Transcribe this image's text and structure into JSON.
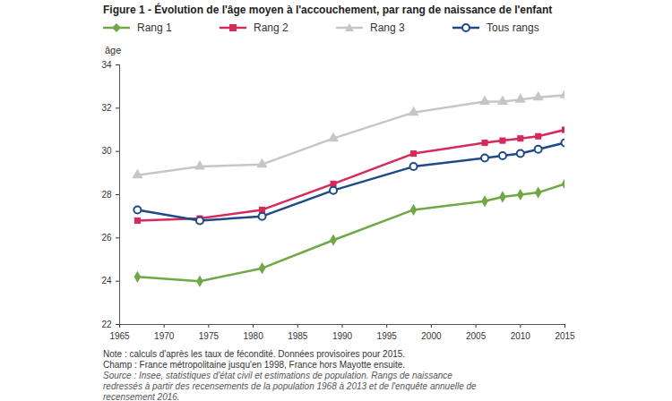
{
  "chart_data": {
    "type": "line",
    "title": "Figure 1 - Évolution de l'âge moyen à l'accouchement, par rang de naissance de l'enfant",
    "y_label": "âge",
    "x": [
      1967,
      1974,
      1981,
      1989,
      1998,
      2006,
      2008,
      2010,
      2012,
      2015
    ],
    "series": [
      {
        "name": "Rang 1",
        "color": "#70a845",
        "marker": "diamond",
        "values": [
          24.2,
          24.0,
          24.6,
          25.9,
          27.3,
          27.7,
          27.9,
          28.0,
          28.1,
          28.5
        ]
      },
      {
        "name": "Rang 2",
        "color": "#d62a5b",
        "marker": "square",
        "values": [
          26.8,
          26.9,
          27.3,
          28.5,
          29.9,
          30.4,
          30.5,
          30.6,
          30.7,
          31.0
        ]
      },
      {
        "name": "Rang 3",
        "color": "#c6c6c6",
        "marker": "triangle",
        "values": [
          28.9,
          29.3,
          29.4,
          30.6,
          31.8,
          32.3,
          32.3,
          32.4,
          32.5,
          32.6
        ]
      },
      {
        "name": "Tous rangs",
        "color": "#1f4a87",
        "marker": "open_circle",
        "values": [
          27.3,
          26.8,
          27.0,
          28.2,
          29.3,
          29.7,
          29.8,
          29.9,
          30.1,
          30.4
        ]
      }
    ],
    "xlim": [
      1965,
      2015
    ],
    "xticks": [
      1965,
      1970,
      1975,
      1980,
      1985,
      1990,
      1995,
      2000,
      2005,
      2010,
      2015
    ],
    "ylim": [
      22,
      34
    ],
    "yticks": [
      22,
      24,
      26,
      28,
      30,
      32,
      34
    ],
    "grid": false,
    "legend": "top",
    "notes": [
      "Note : calculs d'après les taux de fécondité. Données provisoires pour 2015.",
      "Champ : France métropolitaine jusqu'en 1998, France hors Mayotte ensuite."
    ],
    "source": "Source : Insee, statistiques d'état civil et estimations de population. Rangs de naissance redressés à partir des recensements de la population 1968 à 2013 et de l'enquête annuelle de recensement 2016."
  }
}
